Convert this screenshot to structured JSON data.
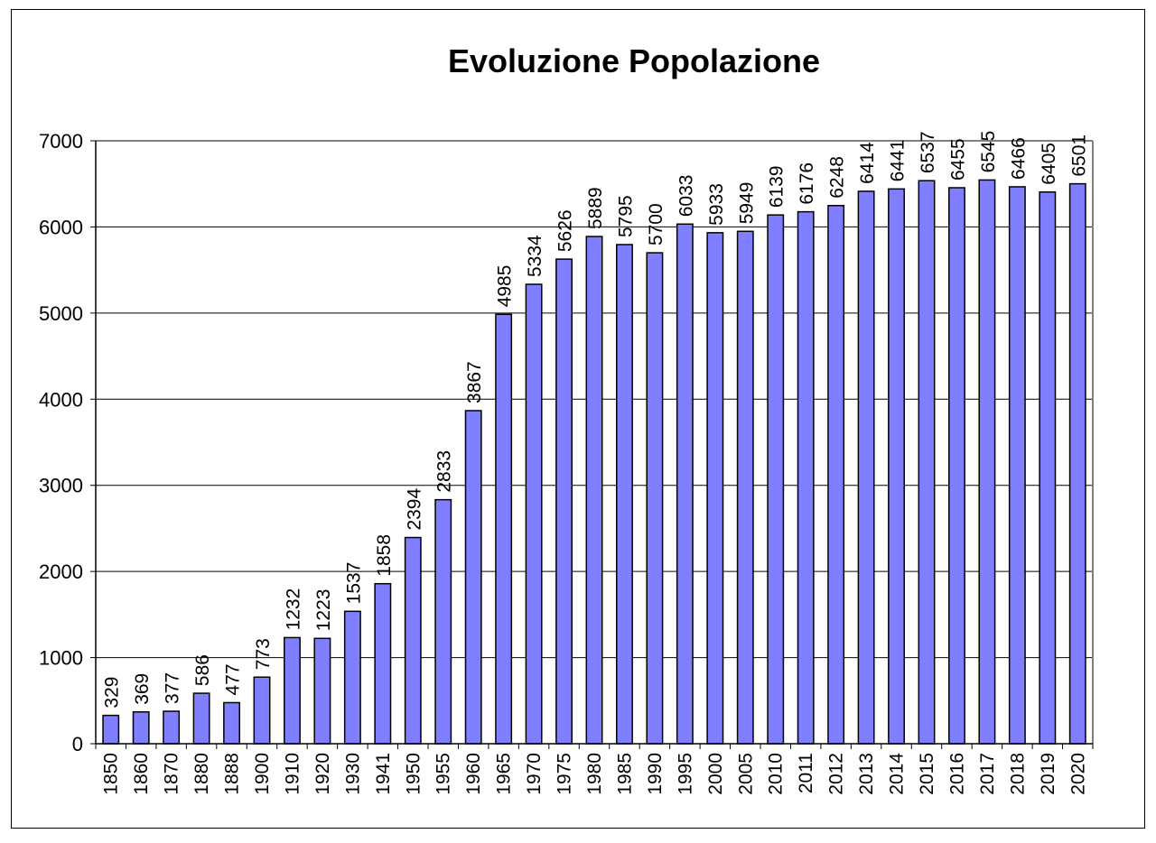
{
  "chart_data": {
    "type": "bar",
    "title": "Evoluzione Popolazione",
    "xlabel": "",
    "ylabel": "",
    "ylim": [
      0,
      7000
    ],
    "yticks": [
      0,
      1000,
      2000,
      3000,
      4000,
      5000,
      6000,
      7000
    ],
    "grid": true,
    "legend": "none",
    "bar_color": "#7f7fff",
    "categories": [
      "1850",
      "1860",
      "1870",
      "1880",
      "1888",
      "1900",
      "1910",
      "1920",
      "1930",
      "1941",
      "1950",
      "1955",
      "1960",
      "1965",
      "1970",
      "1975",
      "1980",
      "1985",
      "1990",
      "1995",
      "2000",
      "2005",
      "2010",
      "2011",
      "2012",
      "2013",
      "2014",
      "2015",
      "2016",
      "2017",
      "2018",
      "2019",
      "2020"
    ],
    "values": [
      329,
      369,
      377,
      586,
      477,
      773,
      1232,
      1223,
      1537,
      1858,
      2394,
      2833,
      3867,
      4985,
      5334,
      5626,
      5889,
      5795,
      5700,
      6033,
      5933,
      5949,
      6139,
      6176,
      6248,
      6414,
      6441,
      6537,
      6455,
      6545,
      6466,
      6405,
      6501
    ]
  }
}
